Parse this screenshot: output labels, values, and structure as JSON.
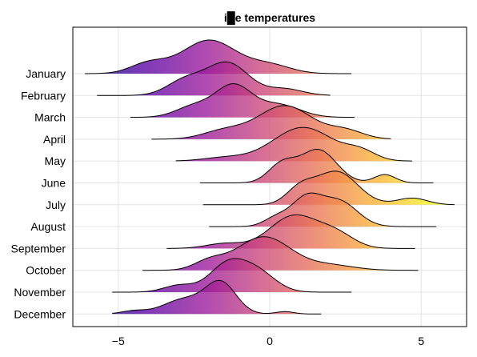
{
  "chart_data": {
    "type": "area",
    "title": "i█e temperatures",
    "xlabel": "",
    "ylabel": "",
    "xlim": [
      -6.5,
      6.5
    ],
    "xticks": [
      -5,
      0,
      5
    ],
    "grid": true,
    "legend": "none",
    "colormap": [
      "#0d0887",
      "#5b02a3",
      "#9a179b",
      "#cb4678",
      "#eb7852",
      "#fbb32f",
      "#eff821"
    ],
    "categories": [
      "January",
      "February",
      "March",
      "April",
      "May",
      "June",
      "July",
      "August",
      "September",
      "October",
      "November",
      "December"
    ],
    "series": [
      {
        "name": "January",
        "range": [
          -6.1,
          2.7
        ],
        "peaks": [
          {
            "mu": -2.0,
            "sigma": 0.9,
            "w": 1.0
          },
          {
            "mu": -4.0,
            "sigma": 0.6,
            "w": 0.3
          },
          {
            "mu": 0.0,
            "sigma": 0.7,
            "w": 0.25
          }
        ]
      },
      {
        "name": "February",
        "range": [
          -5.7,
          2.0
        ],
        "peaks": [
          {
            "mu": -1.4,
            "sigma": 0.7,
            "w": 1.0
          },
          {
            "mu": -2.8,
            "sigma": 0.6,
            "w": 0.45
          },
          {
            "mu": 0.5,
            "sigma": 0.6,
            "w": 0.2
          }
        ]
      },
      {
        "name": "March",
        "range": [
          -4.6,
          2.8
        ],
        "peaks": [
          {
            "mu": -1.2,
            "sigma": 0.6,
            "w": 1.0
          },
          {
            "mu": -2.5,
            "sigma": 0.6,
            "w": 0.35
          },
          {
            "mu": 0.3,
            "sigma": 0.7,
            "w": 0.4
          }
        ]
      },
      {
        "name": "April",
        "range": [
          -3.9,
          4.0
        ],
        "peaks": [
          {
            "mu": 0.5,
            "sigma": 0.9,
            "w": 1.0
          },
          {
            "mu": -1.5,
            "sigma": 0.7,
            "w": 0.25
          },
          {
            "mu": 2.5,
            "sigma": 0.6,
            "w": 0.25
          }
        ]
      },
      {
        "name": "May",
        "range": [
          -3.1,
          4.7
        ],
        "peaks": [
          {
            "mu": 1.1,
            "sigma": 1.0,
            "w": 1.0
          },
          {
            "mu": 3.0,
            "sigma": 0.5,
            "w": 0.25
          },
          {
            "mu": -1.5,
            "sigma": 0.7,
            "w": 0.1
          }
        ]
      },
      {
        "name": "June",
        "range": [
          -2.3,
          5.4
        ],
        "peaks": [
          {
            "mu": 1.6,
            "sigma": 0.6,
            "w": 1.0
          },
          {
            "mu": 0.4,
            "sigma": 0.45,
            "w": 0.55
          },
          {
            "mu": 3.8,
            "sigma": 0.35,
            "w": 0.25
          }
        ]
      },
      {
        "name": "July",
        "range": [
          -2.2,
          6.1
        ],
        "peaks": [
          {
            "mu": 2.2,
            "sigma": 0.7,
            "w": 1.0
          },
          {
            "mu": 1.0,
            "sigma": 0.45,
            "w": 0.45
          },
          {
            "mu": 4.7,
            "sigma": 0.5,
            "w": 0.2
          }
        ]
      },
      {
        "name": "August",
        "range": [
          -2.0,
          5.5
        ],
        "peaks": [
          {
            "mu": 1.2,
            "sigma": 0.5,
            "w": 1.0
          },
          {
            "mu": 2.3,
            "sigma": 0.6,
            "w": 0.9
          },
          {
            "mu": 0.2,
            "sigma": 0.4,
            "w": 0.3
          }
        ]
      },
      {
        "name": "September",
        "range": [
          -3.4,
          4.8
        ],
        "peaks": [
          {
            "mu": 0.8,
            "sigma": 0.8,
            "w": 1.0
          },
          {
            "mu": 2.2,
            "sigma": 0.6,
            "w": 0.4
          },
          {
            "mu": -1.5,
            "sigma": 0.6,
            "w": 0.15
          }
        ]
      },
      {
        "name": "October",
        "range": [
          -4.2,
          4.9
        ],
        "peaks": [
          {
            "mu": -0.2,
            "sigma": 0.9,
            "w": 1.0
          },
          {
            "mu": -2.0,
            "sigma": 0.5,
            "w": 0.25
          },
          {
            "mu": 2.0,
            "sigma": 0.8,
            "w": 0.15
          }
        ]
      },
      {
        "name": "November",
        "range": [
          -5.2,
          2.7
        ],
        "peaks": [
          {
            "mu": -1.4,
            "sigma": 0.6,
            "w": 1.0
          },
          {
            "mu": -0.4,
            "sigma": 0.6,
            "w": 0.7
          },
          {
            "mu": -3.0,
            "sigma": 0.5,
            "w": 0.25
          }
        ]
      },
      {
        "name": "December",
        "range": [
          -5.2,
          1.7
        ],
        "peaks": [
          {
            "mu": -1.6,
            "sigma": 0.5,
            "w": 1.0
          },
          {
            "mu": -2.8,
            "sigma": 0.7,
            "w": 0.5
          },
          {
            "mu": -4.5,
            "sigma": 0.4,
            "w": 0.1
          },
          {
            "mu": 0.5,
            "sigma": 0.3,
            "w": 0.08
          }
        ]
      }
    ]
  }
}
